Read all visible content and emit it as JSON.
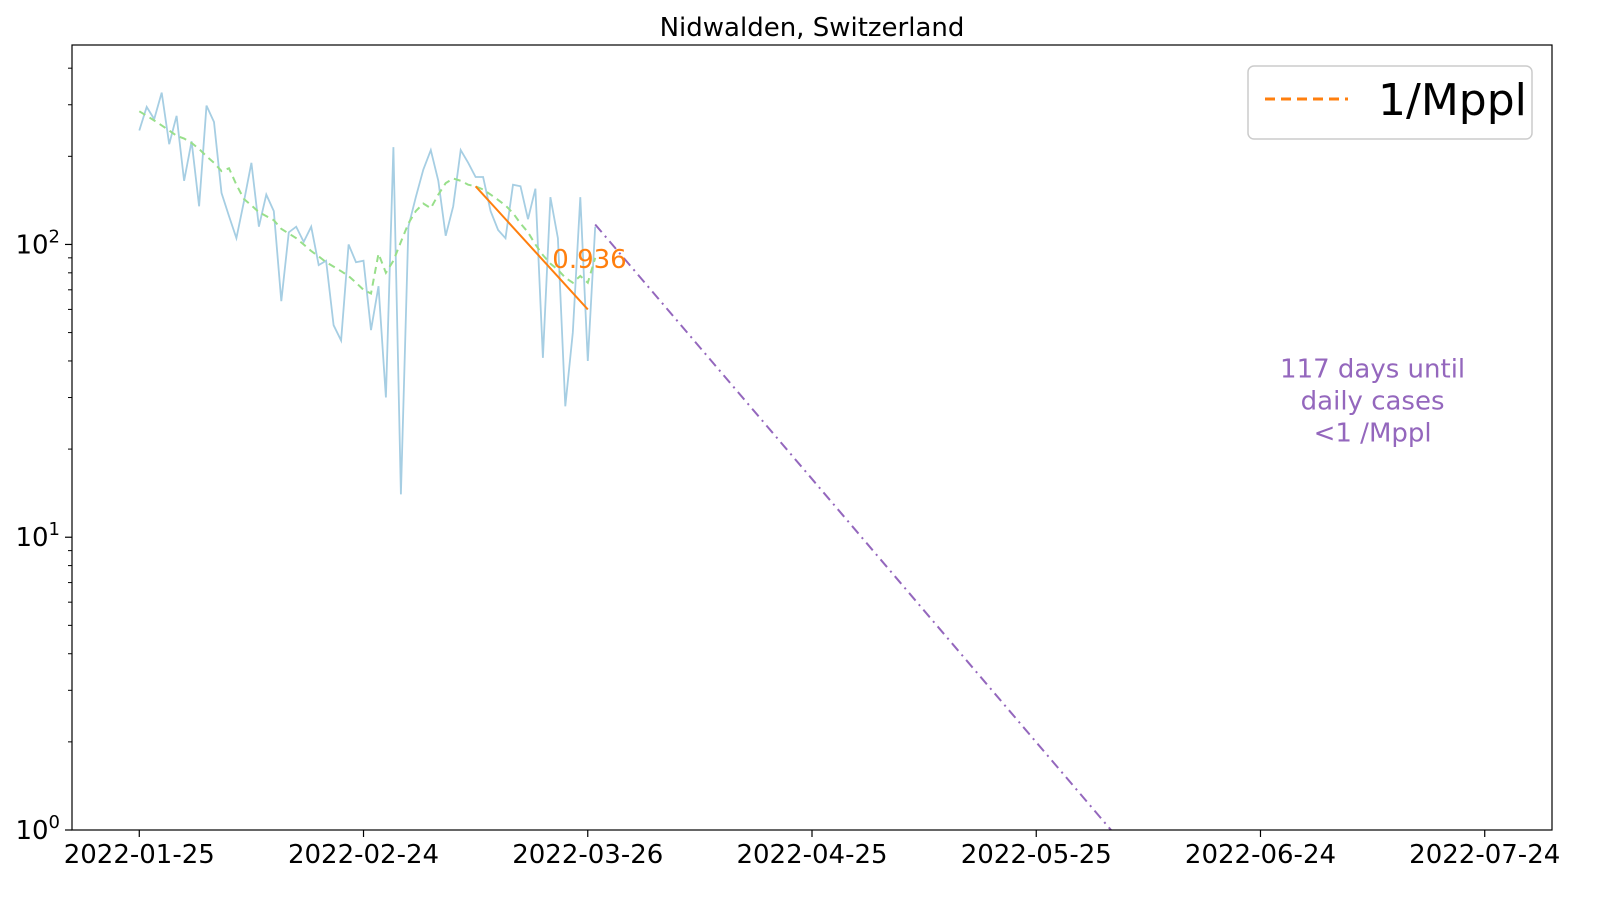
{
  "chart_data": {
    "type": "line",
    "title": "Nidwalden, Switzerland",
    "xlabel": "",
    "ylabel": "",
    "yscale": "log",
    "ylim": [
      1,
      480
    ],
    "xlim": [
      "2022-01-16",
      "2022-08-02"
    ],
    "x_ticks": [
      "2022-01-25",
      "2022-02-24",
      "2022-03-26",
      "2022-04-25",
      "2022-05-25",
      "2022-06-24",
      "2022-07-24"
    ],
    "y_ticks": [
      {
        "value": 1,
        "base": "10",
        "exp": "0"
      },
      {
        "value": 10,
        "base": "10",
        "exp": "1"
      },
      {
        "value": 100,
        "base": "10",
        "exp": "2"
      }
    ],
    "grid": false,
    "legend_position": "top-right",
    "legend": [
      {
        "label": "1/Mppl",
        "color": "#ff7f0e",
        "style": "dashed"
      }
    ],
    "series": [
      {
        "role": "daily",
        "color": "#a6cee3",
        "start": "2022-01-25",
        "values": [
          245,
          295,
          268,
          330,
          220,
          275,
          165,
          225,
          135,
          298,
          262,
          150,
          125,
          105,
          140,
          190,
          115,
          148,
          130,
          64,
          110,
          115,
          102,
          115,
          85,
          88,
          53,
          47,
          100,
          87,
          88,
          51,
          72,
          30,
          215,
          14,
          115,
          145,
          180,
          210,
          165,
          107,
          135,
          210,
          190,
          170,
          170,
          130,
          112,
          105,
          160,
          158,
          122,
          155,
          41,
          145,
          105,
          28,
          50,
          145,
          40,
          115
        ],
        "style": "solid"
      },
      {
        "role": "smoothed",
        "color": "#98df8a",
        "start": "2022-01-25",
        "values": [
          285,
          275,
          265,
          255,
          245,
          235,
          230,
          222,
          212,
          200,
          190,
          178,
          182,
          160,
          143,
          136,
          129,
          125,
          121,
          113,
          109,
          105,
          100,
          95,
          91,
          87,
          84,
          81,
          78,
          74,
          70,
          68,
          93,
          80,
          88,
          102,
          118,
          130,
          138,
          133,
          148,
          162,
          168,
          165,
          160,
          158,
          154,
          148,
          142,
          136,
          128,
          118,
          110,
          100,
          92,
          86,
          82,
          77,
          74,
          78,
          74,
          90
        ],
        "style": "dashed"
      },
      {
        "role": "fit",
        "color": "#ff7f0e",
        "x": [
          "2022-03-11",
          "2022-03-26"
        ],
        "y": [
          158,
          60
        ],
        "style": "solid"
      },
      {
        "role": "projection",
        "color": "#9467bd",
        "x": [
          "2022-03-27",
          "2022-05-35"
        ],
        "y": [
          117,
          1
        ],
        "x_dates": [
          "2022-03-27",
          "2022-06-04"
        ],
        "style": "dashdot"
      }
    ],
    "annotations": [
      {
        "text": "0.936",
        "x": "2022-03-25",
        "y": 90,
        "color": "#ff7f0e"
      },
      {
        "text_lines": [
          "117 days until",
          "daily cases",
          "<1 /Mppl"
        ],
        "x": "2022-07-09",
        "y": 30,
        "color": "#9467bd"
      }
    ]
  }
}
